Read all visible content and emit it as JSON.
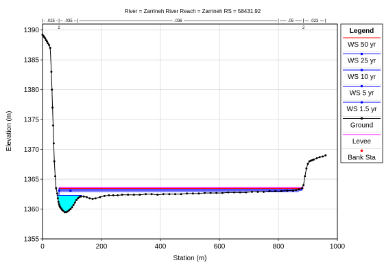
{
  "chart_data": {
    "type": "line",
    "title": "River = Zarrineh River   Reach = Zarrineh      RS = 58431.92",
    "xlabel": "Station (m)",
    "ylabel": "Elevation (m)",
    "xlim": [
      0,
      1000
    ],
    "ylim": [
      1355,
      1391
    ],
    "x_ticks": [
      0,
      200,
      400,
      600,
      800,
      1000
    ],
    "y_ticks": [
      1355,
      1360,
      1365,
      1370,
      1375,
      1380,
      1385,
      1390
    ],
    "grid": true,
    "legend_position": "right",
    "roughness_labels": [
      ".025",
      ".035",
      ".036",
      ".05",
      ".023"
    ],
    "bank_station_label": "2",
    "ground": {
      "name": "Ground",
      "color": "#000000",
      "x": [
        0,
        3,
        6,
        9,
        12,
        15,
        18,
        22,
        26,
        30,
        32,
        34,
        36,
        38,
        40,
        43,
        46,
        50,
        52,
        54,
        56,
        58,
        60,
        63,
        66,
        70,
        75,
        80,
        85,
        90,
        95,
        100,
        105,
        110,
        115,
        120,
        125,
        130,
        140,
        150,
        160,
        170,
        180,
        195,
        210,
        225,
        240,
        255,
        270,
        290,
        310,
        330,
        350,
        370,
        390,
        410,
        430,
        450,
        470,
        490,
        510,
        530,
        550,
        570,
        590,
        610,
        630,
        650,
        670,
        690,
        710,
        730,
        750,
        770,
        790,
        810,
        830,
        850,
        860,
        870,
        880,
        885,
        890,
        895,
        900,
        905,
        910,
        915,
        920,
        930,
        940,
        950,
        960
      ],
      "y": [
        1389.2,
        1389.0,
        1388.8,
        1388.6,
        1388.3,
        1388.1,
        1387.8,
        1387.5,
        1387.0,
        1383.0,
        1380.0,
        1377.0,
        1374.0,
        1371.0,
        1368.0,
        1365.5,
        1363.5,
        1362.6,
        1361.8,
        1361.2,
        1360.8,
        1360.5,
        1360.3,
        1360.1,
        1359.9,
        1359.7,
        1359.5,
        1359.5,
        1359.6,
        1359.8,
        1360.0,
        1360.3,
        1360.7,
        1361.1,
        1361.5,
        1361.8,
        1362.0,
        1362.1,
        1362.1,
        1362.0,
        1361.8,
        1361.7,
        1361.8,
        1362.0,
        1362.2,
        1362.3,
        1362.3,
        1362.3,
        1362.4,
        1362.4,
        1362.4,
        1362.4,
        1362.5,
        1362.5,
        1362.4,
        1362.5,
        1362.5,
        1362.5,
        1362.5,
        1362.6,
        1362.6,
        1362.6,
        1362.7,
        1362.7,
        1362.7,
        1362.7,
        1362.8,
        1362.8,
        1362.8,
        1362.8,
        1362.9,
        1362.9,
        1362.9,
        1363.0,
        1363.0,
        1363.0,
        1363.1,
        1363.1,
        1363.2,
        1363.3,
        1363.5,
        1364.0,
        1365.5,
        1366.8,
        1367.6,
        1368.0,
        1368.1,
        1368.2,
        1368.3,
        1368.5,
        1368.7,
        1368.8,
        1369.0
      ]
    },
    "water_surfaces": [
      {
        "name": "WS 50 yr",
        "color": "#ff0000",
        "elevation": 1363.45,
        "x_start": 56,
        "x_end": 885
      },
      {
        "name": "WS 25 yr",
        "color": "#0000ff",
        "elevation": 1363.3,
        "x_start": 56,
        "x_end": 884
      },
      {
        "name": "WS 10 yr",
        "color": "#0000ff",
        "elevation": 1363.15,
        "x_start": 57,
        "x_end": 880
      },
      {
        "name": "WS 5 yr",
        "color": "#0000ff",
        "elevation": 1362.9,
        "x_start": 57,
        "x_end": 870
      },
      {
        "name": "WS 1.5 yr",
        "color": "#0000ff",
        "elevation": 1362.3,
        "x_start": 48,
        "x_end": 134
      }
    ],
    "levee": {
      "name": "Levee",
      "color": "#ff00ff",
      "elevation": 1363.6,
      "x_start": 56,
      "x_end": 885
    },
    "bank_stations": [
      56,
      885
    ],
    "fill_color": "#00ffff",
    "legend": {
      "title": "Legend",
      "items": [
        {
          "label": "WS 50 yr",
          "color": "#ff0000",
          "style": "line"
        },
        {
          "label": "WS 25 yr",
          "color": "#0000ff",
          "style": "line-dot"
        },
        {
          "label": "WS 10 yr",
          "color": "#0000ff",
          "style": "line-dot"
        },
        {
          "label": "WS 5 yr",
          "color": "#0000ff",
          "style": "line-dot"
        },
        {
          "label": "WS 1.5 yr",
          "color": "#0000ff",
          "style": "line-dot"
        },
        {
          "label": "Ground",
          "color": "#000000",
          "style": "line-dot"
        },
        {
          "label": "Levee",
          "color": "#ff00ff",
          "style": "line"
        },
        {
          "label": "Bank Sta",
          "color": "#ff0000",
          "style": "dot"
        }
      ]
    }
  }
}
